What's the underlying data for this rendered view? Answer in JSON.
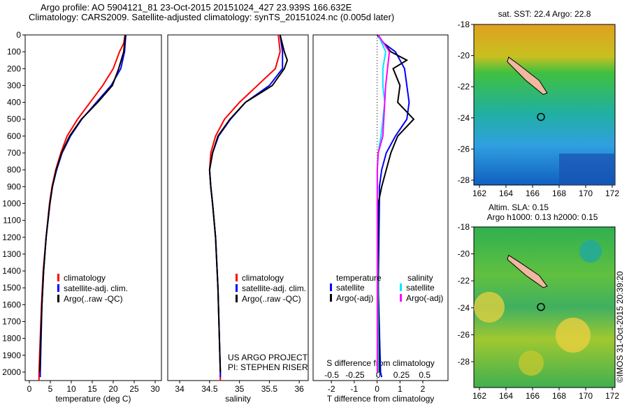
{
  "title_line1": "Argo profile: AO 5904121_81 23-Oct-2015 20151024_427 23.939S 166.632E",
  "title_line2": "Climatology: CARS2009. Satellite-adjusted climatology: synTS_20151024.nc (0.005d later)",
  "colors": {
    "climatology": "#ff0000",
    "satellite": "#0000ff",
    "argo": "#000000",
    "sal_sat": "#00e5ff",
    "sal_argo": "#ff00ff"
  },
  "chart_data": [
    {
      "type": "line",
      "name": "temperature",
      "xlabel": "temperature (deg C)",
      "xlim": [
        -1,
        31.5
      ],
      "ylim": [
        2050,
        0
      ],
      "xticks": [
        0,
        5,
        10,
        15,
        20,
        25,
        30
      ],
      "yticks": [
        0,
        100,
        200,
        300,
        400,
        500,
        600,
        700,
        800,
        900,
        1000,
        1100,
        1200,
        1300,
        1400,
        1500,
        1600,
        1700,
        1800,
        1900,
        2000
      ],
      "legend": [
        "climatology",
        "satellite-adj. clim.",
        "Argo(..raw -QC)"
      ],
      "series": [
        {
          "name": "climatology",
          "color": "#ff0000",
          "depth": [
            0,
            50,
            100,
            200,
            300,
            400,
            500,
            600,
            700,
            800,
            900,
            1000,
            1200,
            1400,
            1600,
            1800,
            2000,
            2050
          ],
          "values": [
            22.8,
            22.5,
            21.5,
            20,
            17.5,
            14.5,
            11.5,
            9,
            7.5,
            6.3,
            5.4,
            4.8,
            4,
            3.3,
            2.9,
            2.6,
            2.3,
            2.3
          ]
        },
        {
          "name": "satellite",
          "color": "#0000ff",
          "depth": [
            0,
            100,
            200,
            300,
            400,
            500,
            600,
            700,
            800,
            900,
            1000,
            1200,
            1400,
            1600,
            1800,
            2000,
            2030
          ],
          "values": [
            23,
            22.7,
            21.8,
            19.5,
            16,
            12.5,
            9.8,
            7.8,
            6.5,
            5.5,
            4.9,
            4,
            3.4,
            3,
            2.8,
            2.6,
            2.6
          ]
        },
        {
          "name": "argo",
          "color": "#000000",
          "depth": [
            0,
            100,
            200,
            300,
            400,
            500,
            600,
            700,
            800,
            900,
            1000,
            1200,
            1400,
            1600,
            1800,
            2000
          ],
          "values": [
            22.9,
            22.5,
            21.3,
            19.8,
            16.3,
            12.4,
            9.6,
            7.7,
            6.4,
            5.5,
            4.9,
            4,
            3.4,
            3,
            2.7,
            2.5
          ]
        }
      ]
    },
    {
      "type": "line",
      "name": "salinity",
      "xlabel": "salinity",
      "xlim": [
        33.8,
        36.15
      ],
      "ylim": [
        2050,
        0
      ],
      "xticks": [
        34,
        34.5,
        35,
        35.5,
        36
      ],
      "legend": [
        "climatology",
        "satellite-adj. clim.",
        "Argo(..raw -QC)"
      ],
      "annotation": [
        "US ARGO PROJECT",
        "PI: STEPHEN RISER"
      ],
      "series": [
        {
          "name": "climatology",
          "color": "#ff0000",
          "depth": [
            0,
            100,
            200,
            300,
            400,
            500,
            600,
            700,
            800,
            900,
            1000,
            1200,
            1500,
            2000,
            2050
          ],
          "values": [
            35.65,
            35.68,
            35.6,
            35.3,
            35.0,
            34.75,
            34.6,
            34.52,
            34.5,
            34.52,
            34.55,
            34.6,
            34.64,
            34.68,
            34.68
          ]
        },
        {
          "name": "satellite",
          "color": "#0000ff",
          "depth": [
            0,
            100,
            200,
            300,
            400,
            500,
            600,
            700,
            800,
            900,
            1000,
            1200,
            1500,
            2000,
            2030
          ],
          "values": [
            35.68,
            35.72,
            35.72,
            35.5,
            35.1,
            34.85,
            34.65,
            34.55,
            34.5,
            34.52,
            34.55,
            34.6,
            34.64,
            34.68,
            34.68
          ]
        },
        {
          "name": "argo",
          "color": "#000000",
          "depth": [
            0,
            100,
            150,
            200,
            300,
            400,
            500,
            600,
            700,
            800,
            900,
            1000,
            1200,
            1500,
            2000
          ],
          "values": [
            35.68,
            35.75,
            35.8,
            35.75,
            35.55,
            35.1,
            34.84,
            34.64,
            34.55,
            34.5,
            34.52,
            34.55,
            34.6,
            34.64,
            34.68
          ]
        }
      ]
    },
    {
      "type": "line",
      "name": "differences",
      "xlabel": "T difference from climatology",
      "x2label": "S difference from climatology",
      "xlim": [
        -2.8,
        3.1
      ],
      "x2lim": [
        -0.7,
        0.75
      ],
      "ylim": [
        2050,
        0
      ],
      "xticks": [
        -2,
        -1,
        0,
        1,
        2
      ],
      "x2ticks": [
        -0.5,
        -0.25,
        0,
        0.25,
        0.5
      ],
      "legend": {
        "temperature_header": "temperature",
        "salinity_header": "salinity",
        "t_sat": "satellite",
        "t_argo": "Argo(-adj)",
        "s_sat": "satellite",
        "s_argo": "Argo(-adj)"
      },
      "series": [
        {
          "name": "T satellite",
          "axis": "T",
          "color": "#0000ff",
          "depth": [
            0,
            50,
            100,
            200,
            300,
            400,
            500,
            600,
            700,
            800,
            900,
            1000,
            1500,
            2000,
            2030
          ],
          "values": [
            0,
            0.3,
            0.8,
            1.2,
            1.3,
            1.4,
            1.3,
            0.8,
            0.4,
            0.2,
            0.1,
            0.1,
            0.05,
            0.15,
            0.2
          ]
        },
        {
          "name": "T Argo",
          "axis": "T",
          "color": "#000000",
          "depth": [
            0,
            50,
            100,
            150,
            200,
            300,
            400,
            500,
            600,
            700,
            800,
            900,
            1000,
            1500,
            2000
          ],
          "values": [
            0,
            0.3,
            0.6,
            1.3,
            0.7,
            1.0,
            0.9,
            1.6,
            0.9,
            0.6,
            0.4,
            0.2,
            0.05,
            0.05,
            0.1
          ]
        },
        {
          "name": "S satellite",
          "axis": "S",
          "color": "#00e5ff",
          "depth": [
            0,
            100,
            200,
            300,
            400,
            500,
            600,
            700,
            800,
            1000,
            2000
          ],
          "values": [
            0,
            0.08,
            0.05,
            0.05,
            0.07,
            0.05,
            0.03,
            0,
            -0.01,
            -0.01,
            0
          ]
        },
        {
          "name": "S Argo",
          "axis": "S",
          "color": "#ff00ff",
          "depth": [
            0,
            100,
            200,
            300,
            400,
            500,
            600,
            700,
            800,
            1000,
            2000
          ],
          "values": [
            0,
            0.12,
            0.1,
            0.08,
            0.07,
            0.06,
            0.05,
            0,
            -0.01,
            -0.01,
            -0.01
          ]
        }
      ]
    }
  ],
  "maps": [
    {
      "title": "sat. SST: 22.4  Argo: 22.8",
      "lat_ticks": [
        -18,
        -20,
        -22,
        -24,
        -26,
        -28
      ],
      "lon_ticks": [
        162,
        164,
        166,
        168,
        170,
        172
      ]
    },
    {
      "title1": "Altim. SLA: 0.15",
      "title2": "Argo h1000: 0.13 h2000: 0.15",
      "lat_ticks": [
        -18,
        -20,
        -22,
        -24,
        -26,
        -28
      ],
      "lon_ticks": [
        162,
        164,
        166,
        168,
        170,
        172
      ]
    }
  ],
  "credit": "©IMOS 31-Oct-2015 20:39:20"
}
